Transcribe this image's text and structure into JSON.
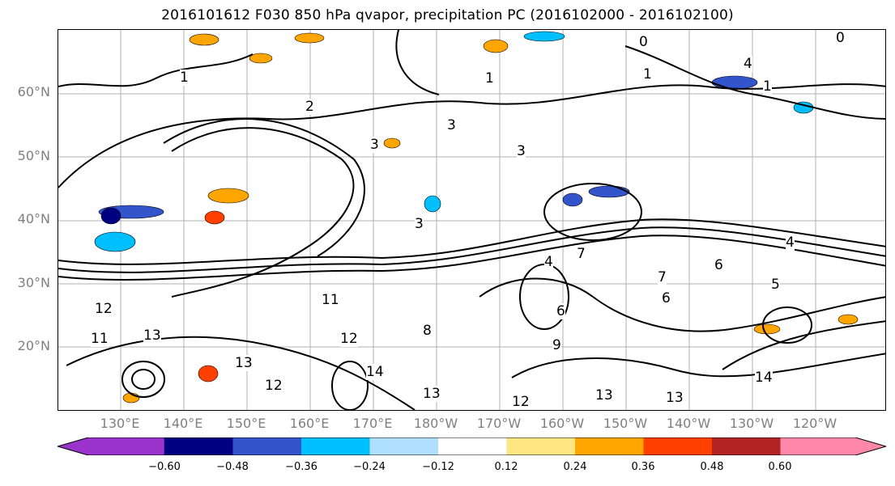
{
  "title": "2016101612 F030 850 hPa qvapor, precipitation PC (2016102000 - 2016102100)",
  "map": {
    "lat_labels": [
      "60°N",
      "50°N",
      "40°N",
      "30°N",
      "20°N"
    ],
    "lon_labels": [
      "130°E",
      "140°E",
      "150°E",
      "160°E",
      "170°E",
      "180°W",
      "170°W",
      "160°W",
      "150°W",
      "140°W",
      "130°W",
      "120°W"
    ],
    "contour_labels": [
      "0",
      "0",
      "1",
      "1",
      "1",
      "1",
      "2",
      "3",
      "3",
      "3",
      "3",
      "4",
      "4",
      "4",
      "5",
      "6",
      "6",
      "6",
      "7",
      "7",
      "8",
      "9",
      "11",
      "11",
      "12",
      "12",
      "12",
      "12",
      "13",
      "13",
      "13",
      "13",
      "13",
      "14",
      "14"
    ]
  },
  "colorbar": {
    "ticks": [
      "−0.60",
      "−0.48",
      "−0.36",
      "−0.24",
      "−0.12",
      "0.12",
      "0.24",
      "0.36",
      "0.48",
      "0.60"
    ],
    "colors": [
      "#9933cc",
      "#000080",
      "#3355cc",
      "#00bfff",
      "#b0e0ff",
      "#ffffff",
      "#ffe680",
      "#ffa500",
      "#ff4000",
      "#b22222",
      "#ff88aa"
    ]
  }
}
